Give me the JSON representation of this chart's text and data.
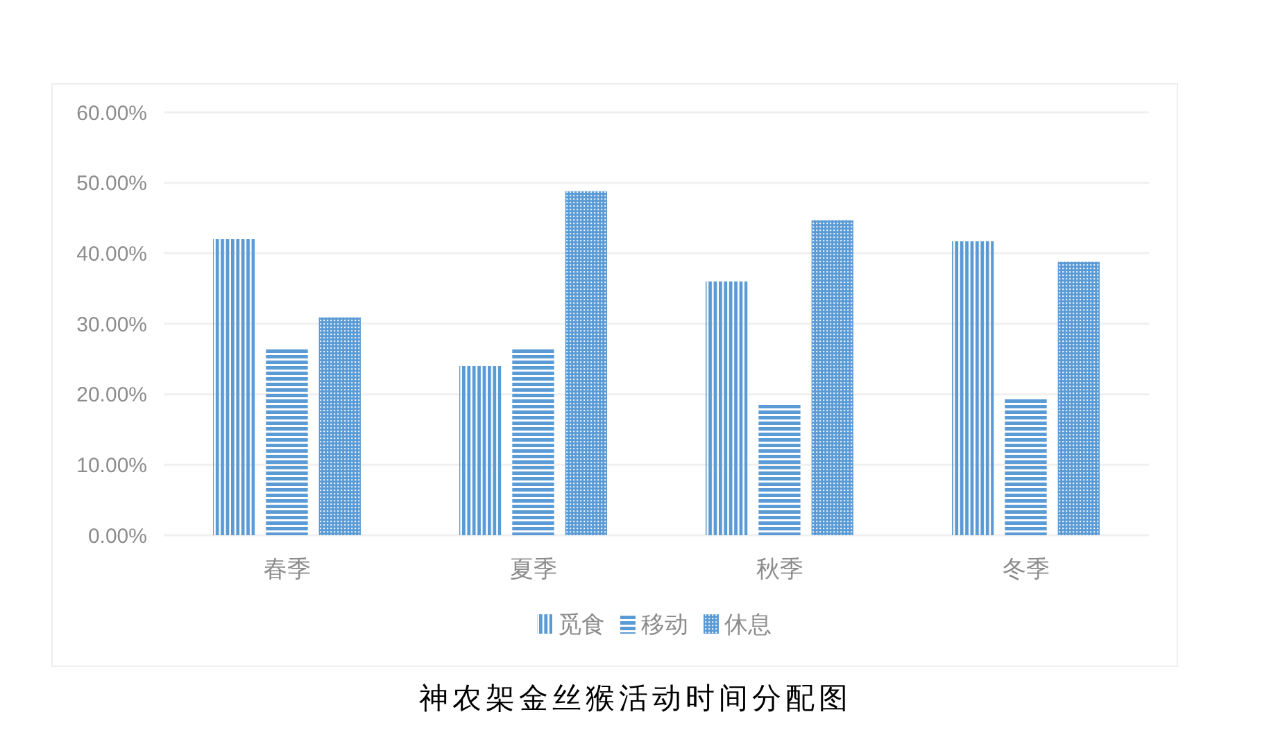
{
  "chart_data": {
    "type": "bar",
    "title": "神农架金丝猴活动时间分配图",
    "categories": [
      "春季",
      "夏季",
      "秋季",
      "冬季"
    ],
    "series": [
      {
        "name": "觅食",
        "color": "#5b9bd5",
        "values": [
          42.0,
          24.0,
          36.0,
          41.7
        ]
      },
      {
        "name": "移动",
        "color": "#5b9bd5",
        "values": [
          26.4,
          26.4,
          18.5,
          19.3
        ]
      },
      {
        "name": "休息",
        "color": "#5b9bd5",
        "values": [
          30.9,
          48.8,
          44.7,
          38.8
        ]
      }
    ],
    "ylim": [
      0,
      60
    ],
    "yticks": [
      {
        "value": 0,
        "label": "0.00%"
      },
      {
        "value": 10,
        "label": "10.00%"
      },
      {
        "value": 20,
        "label": "20.00%"
      },
      {
        "value": 30,
        "label": "30.00%"
      },
      {
        "value": 40,
        "label": "40.00%"
      },
      {
        "value": 50,
        "label": "50.00%"
      },
      {
        "value": 60,
        "label": "60.00%"
      }
    ],
    "grid": "y",
    "legend": "bottom"
  }
}
